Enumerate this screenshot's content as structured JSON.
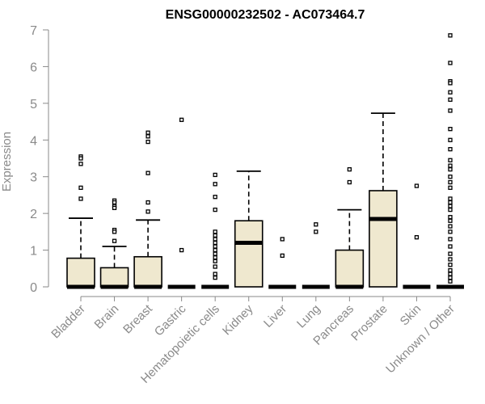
{
  "chart_data": {
    "type": "box",
    "title": "ENSG00000232502 - AC073464.7",
    "ylabel": "Expression",
    "ylim": [
      0,
      7
    ],
    "yticks": [
      0,
      1,
      2,
      3,
      4,
      5,
      6,
      7
    ],
    "grid": false,
    "box_fill": "#efe8cf",
    "axis_color": "#8a8a8a",
    "categories": [
      "Bladder",
      "Brain",
      "Breast",
      "Gastric",
      "Hematopoietic cells",
      "Kidney",
      "Liver",
      "Lung",
      "Pancreas",
      "Prostate",
      "Skin",
      "Unknown / Other"
    ],
    "boxes": [
      {
        "q1": 0,
        "median": 0,
        "q3": 0.78,
        "whisker_low": 0,
        "whisker_high": 1.87,
        "outliers": [
          3.55,
          3.5,
          3.35,
          2.7,
          2.4
        ]
      },
      {
        "q1": 0,
        "median": 0,
        "q3": 0.52,
        "whisker_low": 0,
        "whisker_high": 1.1,
        "outliers": [
          2.35,
          2.3,
          2.2,
          2.15,
          1.55,
          1.5,
          1.25
        ]
      },
      {
        "q1": 0,
        "median": 0,
        "q3": 0.82,
        "whisker_low": 0,
        "whisker_high": 1.82,
        "outliers": [
          4.2,
          4.1,
          3.95,
          3.1,
          2.3,
          2.05
        ]
      },
      {
        "q1": 0,
        "median": 0,
        "q3": 0,
        "whisker_low": 0,
        "whisker_high": 0,
        "outliers": [
          4.55,
          1.0
        ]
      },
      {
        "q1": 0,
        "median": 0,
        "q3": 0,
        "whisker_low": 0,
        "whisker_high": 0,
        "outliers": [
          3.05,
          2.8,
          2.45,
          2.1,
          1.5,
          1.4,
          1.3,
          1.2,
          1.1,
          1.0,
          0.9,
          0.8,
          0.7,
          0.55,
          0.35,
          0.25
        ]
      },
      {
        "q1": 0,
        "median": 1.2,
        "q3": 1.8,
        "whisker_low": 0,
        "whisker_high": 3.15,
        "outliers": []
      },
      {
        "q1": 0,
        "median": 0,
        "q3": 0,
        "whisker_low": 0,
        "whisker_high": 0,
        "outliers": [
          1.3,
          0.85
        ]
      },
      {
        "q1": 0,
        "median": 0,
        "q3": 0,
        "whisker_low": 0,
        "whisker_high": 0,
        "outliers": [
          1.7,
          1.5
        ]
      },
      {
        "q1": 0,
        "median": 0,
        "q3": 1.0,
        "whisker_low": 0,
        "whisker_high": 2.1,
        "outliers": [
          3.2,
          2.85
        ]
      },
      {
        "q1": 0,
        "median": 1.85,
        "q3": 2.62,
        "whisker_low": 0,
        "whisker_high": 4.73,
        "outliers": []
      },
      {
        "q1": 0,
        "median": 0,
        "q3": 0,
        "whisker_low": 0,
        "whisker_high": 0,
        "outliers": [
          2.75,
          1.35
        ]
      },
      {
        "q1": 0,
        "median": 0,
        "q3": 0,
        "whisker_low": 0,
        "whisker_high": 0,
        "outliers": [
          6.85,
          6.1,
          5.6,
          5.55,
          5.3,
          5.1,
          4.8,
          4.3,
          4.0,
          3.75,
          3.45,
          3.3,
          3.2,
          3.0,
          2.85,
          2.7,
          2.4,
          2.3,
          2.2,
          2.1,
          1.9,
          1.8,
          1.65,
          1.5,
          1.3,
          1.1,
          0.9,
          0.75,
          0.6,
          0.45,
          0.35,
          0.25,
          0.15
        ]
      }
    ]
  }
}
